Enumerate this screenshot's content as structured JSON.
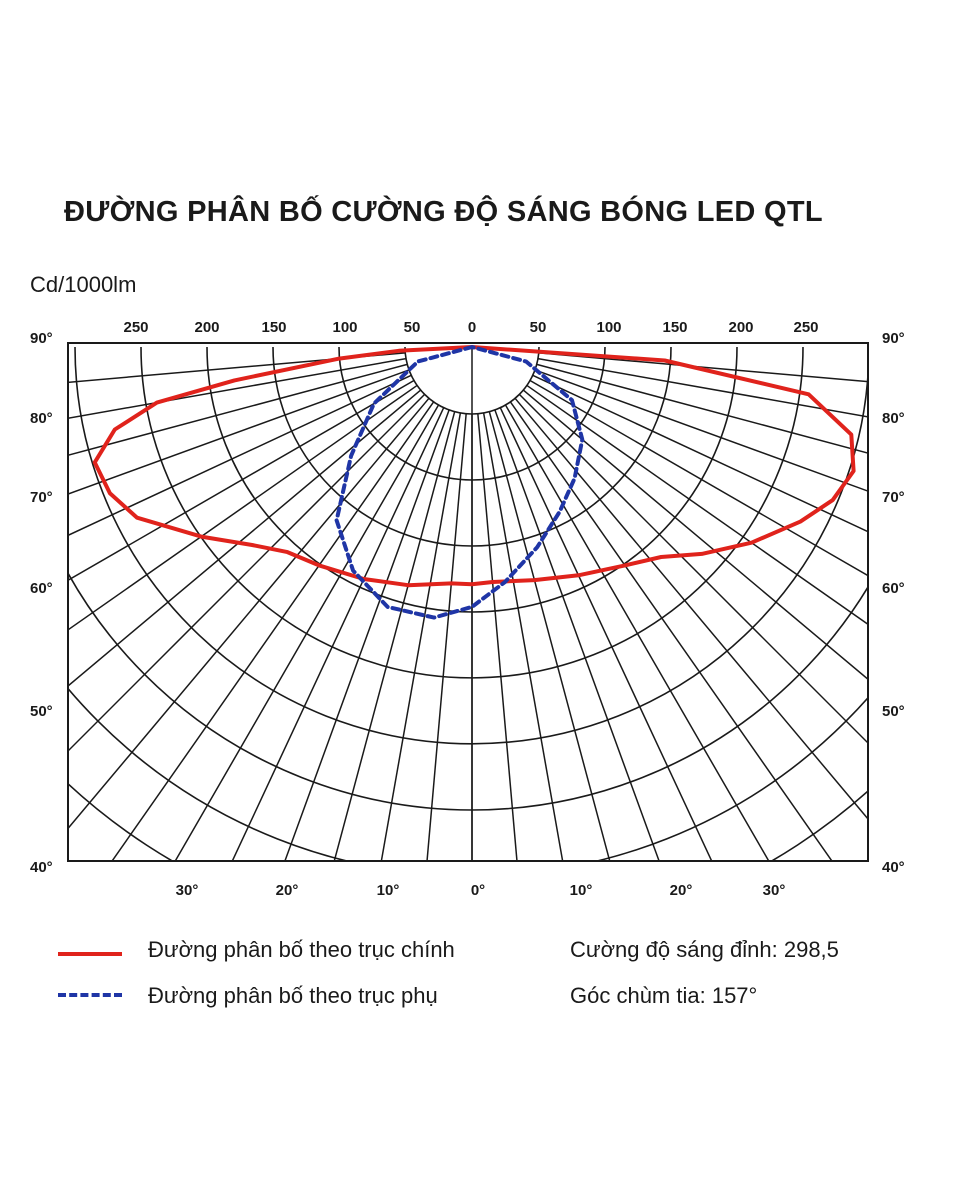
{
  "title": "ĐƯỜNG PHÂN BỐ CƯỜNG ĐỘ SÁNG BÓNG LED QTL",
  "unit_label": "Cd/1000lm",
  "legend": {
    "primary": {
      "label": "Đường phân bố theo trục chính",
      "color": "#e0231c",
      "style": "solid"
    },
    "secondary": {
      "label": "Đường phân bố theo trục phụ",
      "color": "#1f35a6",
      "style": "dashed"
    }
  },
  "info": {
    "peak_label": "Cường độ sáng đỉnh: 298,5",
    "beam_label": "Góc chùm tia: 157°"
  },
  "chart_data": {
    "type": "polar",
    "title": "ĐƯỜNG PHÂN BỐ CƯỜNG ĐỘ SÁNG BÓNG LED QTL",
    "radial_unit": "Cd/1000lm",
    "radial_ticks": [
      50,
      100,
      150,
      200,
      250
    ],
    "top_tick_labels": [
      "250",
      "200",
      "150",
      "100",
      "50",
      "0",
      "50",
      "100",
      "150",
      "200",
      "250"
    ],
    "side_angle_labels": [
      "90°",
      "80°",
      "70°",
      "60°",
      "50°",
      "40°"
    ],
    "bottom_angle_labels": [
      "30°",
      "20°",
      "10°",
      "0°",
      "10°",
      "20°",
      "30°"
    ],
    "series": [
      {
        "name": "Đường phân bố theo trục chính",
        "style": "solid",
        "points": [
          {
            "angle": -90,
            "value": 0
          },
          {
            "angle": -87,
            "value": 55
          },
          {
            "angle": -85,
            "value": 100
          },
          {
            "angle": -82,
            "value": 180
          },
          {
            "angle": -80,
            "value": 240
          },
          {
            "angle": -77,
            "value": 275
          },
          {
            "angle": -73,
            "value": 296
          },
          {
            "angle": -68,
            "value": 293
          },
          {
            "angle": -63,
            "value": 282
          },
          {
            "angle": -55,
            "value": 248
          },
          {
            "angle": -48,
            "value": 222
          },
          {
            "angle": -42,
            "value": 207
          },
          {
            "angle": -35,
            "value": 200
          },
          {
            "angle": -25,
            "value": 192
          },
          {
            "angle": -15,
            "value": 185
          },
          {
            "angle": -5,
            "value": 178
          },
          {
            "angle": 0,
            "value": 178
          },
          {
            "angle": 5,
            "value": 177
          },
          {
            "angle": 15,
            "value": 181
          },
          {
            "angle": 25,
            "value": 189
          },
          {
            "angle": 35,
            "value": 200
          },
          {
            "angle": 42,
            "value": 212
          },
          {
            "angle": 48,
            "value": 232
          },
          {
            "angle": 55,
            "value": 256
          },
          {
            "angle": 62,
            "value": 279
          },
          {
            "angle": 67,
            "value": 294
          },
          {
            "angle": 72,
            "value": 301
          },
          {
            "angle": 77,
            "value": 292
          },
          {
            "angle": 82,
            "value": 255
          },
          {
            "angle": 86,
            "value": 145
          },
          {
            "angle": 90,
            "value": 0
          }
        ]
      },
      {
        "name": "Đường phân bố theo trục phụ",
        "style": "dashed",
        "points": [
          {
            "angle": -90,
            "value": 0
          },
          {
            "angle": -75,
            "value": 42
          },
          {
            "angle": -60,
            "value": 85
          },
          {
            "angle": -48,
            "value": 122
          },
          {
            "angle": -38,
            "value": 165
          },
          {
            "angle": -28,
            "value": 190
          },
          {
            "angle": -18,
            "value": 205
          },
          {
            "angle": -8,
            "value": 205
          },
          {
            "angle": 0,
            "value": 195
          },
          {
            "angle": 8,
            "value": 178
          },
          {
            "angle": 18,
            "value": 158
          },
          {
            "angle": 28,
            "value": 140
          },
          {
            "angle": 38,
            "value": 125
          },
          {
            "angle": 50,
            "value": 108
          },
          {
            "angle": 62,
            "value": 85
          },
          {
            "angle": 75,
            "value": 42
          },
          {
            "angle": 90,
            "value": 0
          }
        ]
      }
    ],
    "peak_intensity": 298.5,
    "beam_angle": "157°",
    "grid": true
  }
}
